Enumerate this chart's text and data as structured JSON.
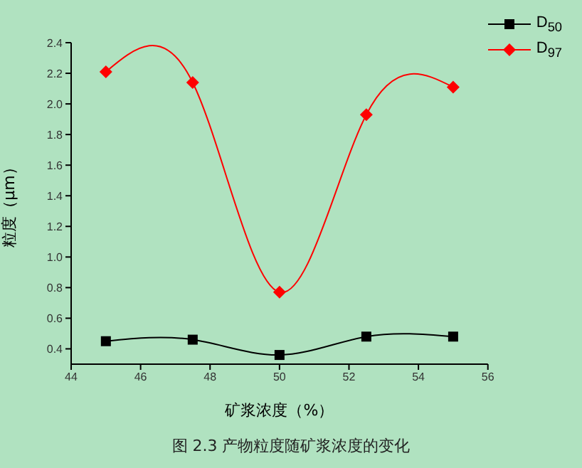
{
  "chart_data": {
    "type": "line",
    "xlabel": "矿浆浓度（%）",
    "ylabel": "粒度（μm）",
    "annotations": [
      "图 2.3 产物粒度随矿浆浓度的变化"
    ],
    "x": [
      45,
      47.5,
      50,
      52.5,
      55
    ],
    "series": [
      {
        "name": "D$_{50}$",
        "color": "#000000",
        "marker": "square",
        "values": [
          0.45,
          0.46,
          0.36,
          0.48,
          0.48
        ]
      },
      {
        "name": "D$_{97}$",
        "color": "#ff0000",
        "marker": "diamond",
        "values": [
          2.21,
          2.14,
          0.77,
          1.93,
          2.11
        ]
      }
    ],
    "xlim": [
      44,
      56
    ],
    "xticks": [
      44,
      46,
      48,
      50,
      52,
      54,
      56
    ],
    "ylim": [
      0.3,
      2.4
    ],
    "yticks": [
      0.4,
      0.6,
      0.8,
      {
        "value": 1,
        "label": "1.0"
      },
      1.2,
      1.4,
      1.6,
      1.8,
      {
        "value": 2,
        "label": "2.0"
      },
      2.2,
      2.4
    ],
    "grid": false,
    "legend": "top right",
    "line_style": "solid"
  }
}
